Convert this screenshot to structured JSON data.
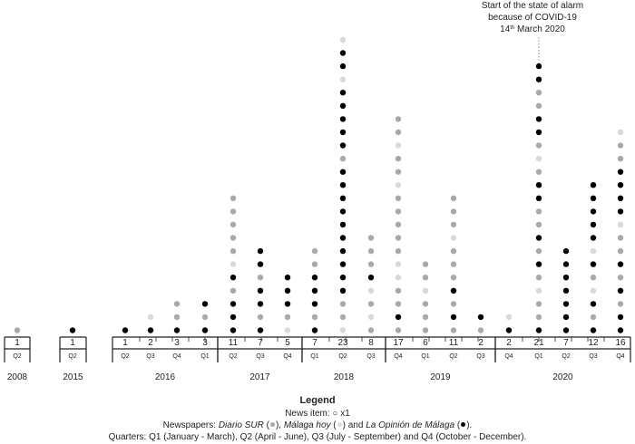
{
  "chart_data": {
    "type": "dot-column",
    "annotation": {
      "lines": [
        "Start of the state of alarm",
        "because of COVID-19",
        "14",
        "th",
        " March 2020"
      ],
      "at_period": "2020-Q1"
    },
    "periods": [
      {
        "year": "2008",
        "quarter": "Q2",
        "total": 1,
        "dots": [
          1
        ]
      },
      {
        "year": "2015",
        "quarter": "Q2",
        "total": 1,
        "dots": [
          3
        ]
      },
      {
        "year": "2016",
        "quarter": "Q2",
        "total": 1,
        "dots": [
          3
        ]
      },
      {
        "year": "2016",
        "quarter": "Q3",
        "total": 2,
        "dots": [
          3,
          2
        ]
      },
      {
        "year": "2016",
        "quarter": "Q4",
        "total": 3,
        "dots": [
          3,
          1,
          1
        ]
      },
      {
        "year": "2017",
        "quarter": "Q1",
        "total": 3,
        "dots": [
          3,
          1,
          3
        ]
      },
      {
        "year": "2017",
        "quarter": "Q2",
        "total": 11,
        "dots": [
          3,
          3,
          3,
          1,
          3,
          2,
          1,
          1,
          1,
          1,
          1
        ]
      },
      {
        "year": "2017",
        "quarter": "Q3",
        "total": 7,
        "dots": [
          3,
          1,
          3,
          3,
          1,
          3,
          3
        ]
      },
      {
        "year": "2017",
        "quarter": "Q4",
        "total": 5,
        "dots": [
          2,
          1,
          3,
          3,
          3
        ]
      },
      {
        "year": "2018",
        "quarter": "Q1",
        "total": 7,
        "dots": [
          3,
          1,
          3,
          3,
          3,
          1,
          1
        ]
      },
      {
        "year": "2018",
        "quarter": "Q2",
        "total": 23,
        "dots": [
          2,
          1,
          1,
          3,
          3,
          3,
          3,
          3,
          3,
          3,
          3,
          3,
          3,
          1,
          3,
          3,
          3,
          3,
          3,
          2,
          3,
          3,
          2
        ]
      },
      {
        "year": "2018",
        "quarter": "Q3",
        "total": 8,
        "dots": [
          1,
          2,
          1,
          2,
          3,
          1,
          1,
          1
        ]
      },
      {
        "year": "2018",
        "quarter": "Q4",
        "total": 17,
        "dots": [
          1,
          3,
          1,
          1,
          2,
          2,
          1,
          1,
          1,
          1,
          1,
          2,
          1,
          1,
          2,
          1,
          1
        ]
      },
      {
        "year": "2019",
        "quarter": "Q1",
        "total": 6,
        "dots": [
          1,
          1,
          1,
          2,
          1,
          1
        ]
      },
      {
        "year": "2019",
        "quarter": "Q2",
        "total": 11,
        "dots": [
          1,
          3,
          1,
          3,
          1,
          1,
          1,
          2,
          1,
          1,
          1
        ]
      },
      {
        "year": "2019",
        "quarter": "Q3",
        "total": 2,
        "dots": [
          1,
          3
        ]
      },
      {
        "year": "2019",
        "quarter": "Q4",
        "total": 2,
        "dots": [
          3,
          2
        ]
      },
      {
        "year": "2020",
        "quarter": "Q1",
        "total": 21,
        "dots": [
          3,
          1,
          1,
          2,
          1,
          3,
          1,
          3,
          1,
          1,
          3,
          3,
          1,
          2,
          1,
          3,
          3,
          1,
          1,
          3,
          3
        ]
      },
      {
        "year": "2020",
        "quarter": "Q2",
        "total": 7,
        "dots": [
          3,
          3,
          3,
          3,
          3,
          3,
          3
        ]
      },
      {
        "year": "2020",
        "quarter": "Q3",
        "total": 12,
        "dots": [
          3,
          1,
          3,
          2,
          1,
          3,
          2,
          3,
          3,
          3,
          3,
          3
        ]
      },
      {
        "year": "2020",
        "quarter": "Q4",
        "total": 16,
        "dots": [
          3,
          3,
          1,
          3,
          1,
          3,
          1,
          1,
          2,
          3,
          3,
          3,
          3,
          1,
          1,
          2
        ]
      }
    ],
    "years": [
      "2008",
      "2015",
      "2016",
      "2017",
      "2018",
      "2019",
      "2020"
    ],
    "dot_encoding": {
      "1": "Diario SUR",
      "2": "Málaga hoy",
      "3": "La Opinión de Málaga"
    },
    "colors": {
      "1": "#a9a9a9",
      "2": "#d9d9d9",
      "3": "#000000",
      "axis": "#222222",
      "text": "#222222"
    }
  },
  "legend": {
    "title": "Legend",
    "news_item": "News item: ○ x1",
    "papers_prefix": "Newspapers: ",
    "paper1": "Diario SUR",
    "paper2": "Málaga hoy",
    "paper3": "La Opinión de Málaga",
    "papers_suffix": ".",
    "quarters": "Quarters: Q1 (January - March), Q2 (April - June), Q3 (July - September) and Q4 (October - December)."
  }
}
